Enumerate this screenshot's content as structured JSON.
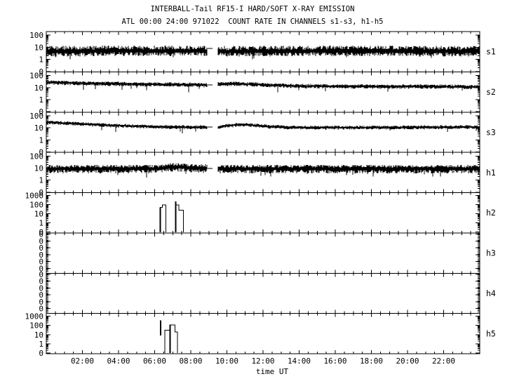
{
  "title": "INTERBALL-Tail RF15-I HARD/SOFT X-RAY EMISSION",
  "subtitle": "ATL 00:00 24:00 971022  COUNT RATE IN CHANNELS s1-s3, h1-h5",
  "colors": {
    "foreground": "#000000",
    "background": "#ffffff"
  },
  "chart_data": {
    "type": "line",
    "description": "Eight stacked log-scale time-series panels of X-ray count rate vs time UT",
    "x_axis": {
      "label": "time UT",
      "hours_start": 0,
      "hours_end": 24,
      "major_step": 2,
      "minor_step": 0.5,
      "tick_hours": [
        2,
        4,
        6,
        8,
        10,
        12,
        14,
        16,
        18,
        20,
        22
      ],
      "tick_labels": [
        "02:00",
        "04:00",
        "06:00",
        "08:00",
        "10:00",
        "12:00",
        "14:00",
        "16:00",
        "18:00",
        "20:00",
        "22:00"
      ]
    },
    "panels": [
      {
        "channel": "s1",
        "type": "noisy-line",
        "y_tick_labels": [
          "100",
          "10",
          "1",
          "0"
        ],
        "y_scale": {
          "top_log": 2,
          "top_frac": 0.09,
          "decade_frac": 0.3
        },
        "series": {
          "center_points": [
            [
              0,
              4.5
            ],
            [
              5,
              5
            ],
            [
              9.2,
              5
            ],
            [
              9.48,
              4.5
            ],
            [
              16,
              5
            ],
            [
              24,
              4.5
            ]
          ],
          "spread_up": 0.45,
          "spread_dn": 0.43,
          "downspike_prob": 0.02,
          "downspike_depth": 0.3,
          "gaps": [
            [
              9.2,
              9.48
            ]
          ],
          "pregap_flat": [
            8.93,
            9.2,
            8
          ]
        }
      },
      {
        "channel": "s2",
        "type": "noisy-line",
        "y_tick_labels": [
          "100",
          "10",
          "1",
          "0"
        ],
        "y_scale": {
          "top_log": 2,
          "top_frac": 0.09,
          "decade_frac": 0.3
        },
        "series": {
          "center_points": [
            [
              0,
              27
            ],
            [
              2,
              23
            ],
            [
              5,
              19.5
            ],
            [
              7,
              18
            ],
            [
              9.2,
              16.5
            ],
            [
              9.48,
              19
            ],
            [
              10.3,
              21
            ],
            [
              11.5,
              19
            ],
            [
              12.5,
              16
            ],
            [
              14,
              13.5
            ],
            [
              17,
              12.5
            ],
            [
              21,
              12.5
            ],
            [
              24,
              11.5
            ]
          ],
          "spread_up": 0.17,
          "spread_dn": 0.2,
          "downspike_prob": 0.02,
          "downspike_depth": 0.5,
          "gaps": [
            [
              9.2,
              9.48
            ]
          ],
          "pregap_flat": [
            8.93,
            9.2,
            16
          ]
        }
      },
      {
        "channel": "s3",
        "type": "noisy-line",
        "y_tick_labels": [
          "100",
          "10",
          "1",
          "0"
        ],
        "y_scale": {
          "top_log": 2,
          "top_frac": 0.09,
          "decade_frac": 0.3
        },
        "series": {
          "center_points": [
            [
              0,
              29
            ],
            [
              2,
              21
            ],
            [
              4,
              15.5
            ],
            [
              6,
              12.5
            ],
            [
              8,
              11.5
            ],
            [
              9.2,
              11.5
            ],
            [
              9.48,
              12
            ],
            [
              10.2,
              16
            ],
            [
              10.8,
              19
            ],
            [
              11.4,
              17
            ],
            [
              12.3,
              13
            ],
            [
              13.5,
              11
            ],
            [
              16,
              10.5
            ],
            [
              20,
              11
            ],
            [
              24,
              12
            ]
          ],
          "spread_up": 0.15,
          "spread_dn": 0.18,
          "downspike_prob": 0.015,
          "downspike_depth": 0.45,
          "gaps": [
            [
              9.2,
              9.48
            ]
          ],
          "pregap_flat": [
            8.93,
            9.2,
            11.5
          ]
        }
      },
      {
        "channel": "h1",
        "type": "noisy-line",
        "y_tick_labels": [
          "100",
          "10",
          "1",
          "0"
        ],
        "y_scale": {
          "top_log": 2,
          "top_frac": 0.09,
          "decade_frac": 0.3
        },
        "series": {
          "center_points": [
            [
              0,
              9
            ],
            [
              6.1,
              9
            ],
            [
              6.6,
              12
            ],
            [
              7.4,
              12.5
            ],
            [
              8.3,
              10.5
            ],
            [
              9.2,
              9.5
            ],
            [
              9.48,
              9
            ],
            [
              14,
              9
            ],
            [
              24,
              9
            ]
          ],
          "spread_up": 0.32,
          "spread_dn": 0.4,
          "downspike_prob": 0.03,
          "downspike_depth": 0.4,
          "gaps": [
            [
              9.2,
              9.48
            ]
          ],
          "pregap_flat": [
            8.93,
            9.2,
            9.5
          ]
        }
      },
      {
        "channel": "h2",
        "type": "pulses",
        "y_tick_labels": [
          "1000",
          "100",
          "10",
          "1",
          "0"
        ],
        "y_scale": {
          "top_log": 3,
          "top_frac": 0.07,
          "decade_frac": 0.2275
        },
        "series": {
          "pulses": [
            {
              "steps": [
                [
                  6.31,
                  6.43,
                  48
                ],
                [
                  6.43,
                  6.63,
                  95
                ]
              ]
            },
            {
              "steps": [
                [
                  7.15,
                  7.34,
                  95
                ],
                [
                  7.34,
                  7.59,
                  25
                ]
              ]
            }
          ],
          "spikes": [
            {
              "t": 6.32,
              "v1": 48
            },
            {
              "t": 7.16,
              "v1": 230
            }
          ]
        }
      },
      {
        "channel": "h3",
        "type": "empty",
        "y_tick_labels": [
          "0",
          "0",
          "0",
          "0",
          "0",
          "0"
        ],
        "y_scale": {
          "zero_axis": true
        }
      },
      {
        "channel": "h4",
        "type": "empty",
        "y_tick_labels": [
          "0",
          "0",
          "0",
          "0",
          "0",
          "0"
        ],
        "y_scale": {
          "zero_axis": true
        }
      },
      {
        "channel": "h5",
        "type": "pulses",
        "y_tick_labels": [
          "1000",
          "100",
          "10",
          "1",
          "0"
        ],
        "y_scale": {
          "top_log": 3,
          "top_frac": 0.07,
          "decade_frac": 0.2275
        },
        "series": {
          "pulses": [
            {
              "steps": [
                [
                  6.56,
                  6.84,
                  30
                ]
              ]
            },
            {
              "steps": [
                [
                  6.84,
                  7.13,
                  110
                ],
                [
                  7.13,
                  7.26,
                  20
                ]
              ]
            }
          ],
          "spikes": [
            {
              "t": 6.33,
              "v0": 8,
              "v1": 350
            },
            {
              "t": 6.85,
              "v1": 110
            }
          ]
        }
      }
    ]
  }
}
